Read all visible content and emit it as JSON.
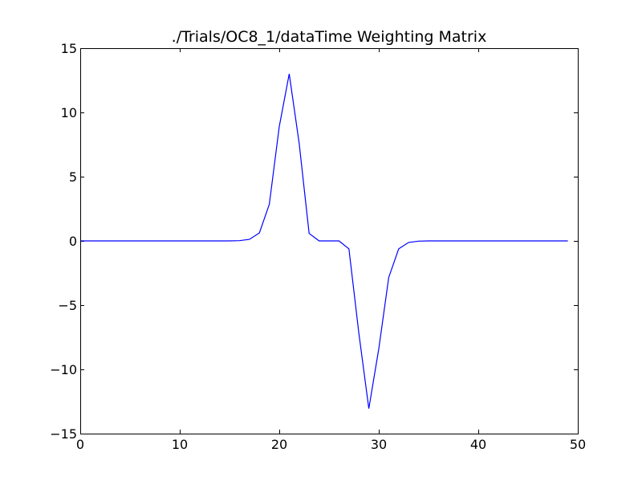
{
  "chart_data": {
    "type": "line",
    "title": "./Trials/OC8_1/dataTime Weighting Matrix",
    "xlabel": "",
    "ylabel": "",
    "xlim": [
      0,
      50
    ],
    "ylim": [
      -15,
      15
    ],
    "grid": false,
    "legend": "none",
    "x_ticks": [
      0,
      10,
      20,
      30,
      40,
      50
    ],
    "x_tick_labels": [
      "0",
      "10",
      "20",
      "30",
      "40",
      "50"
    ],
    "y_ticks": [
      15,
      10,
      5,
      0,
      -5,
      -10,
      -15
    ],
    "y_tick_labels": [
      "15",
      "10",
      "5",
      "0",
      "−5",
      "−10",
      "−15"
    ],
    "series": [
      {
        "color": "#0000ff",
        "x": [
          0,
          1,
          2,
          3,
          4,
          5,
          6,
          7,
          8,
          9,
          10,
          11,
          12,
          13,
          14,
          15,
          16,
          17,
          18,
          19,
          20,
          21,
          22,
          23,
          24,
          25,
          26,
          27,
          28,
          29,
          30,
          31,
          32,
          33,
          34,
          35,
          36,
          37,
          38,
          39,
          40,
          41,
          42,
          43,
          44,
          45,
          46,
          47,
          48,
          49
        ],
        "y": [
          0,
          0,
          0,
          0,
          0,
          0,
          0,
          0,
          0,
          0,
          0,
          0,
          0,
          0,
          0,
          0,
          0.02,
          0.12,
          0.62,
          2.85,
          8.9,
          13.0,
          7.6,
          0.58,
          0.0,
          0.0,
          0.0,
          -0.62,
          -7.2,
          -13.05,
          -8.4,
          -2.85,
          -0.62,
          -0.12,
          -0.02,
          0,
          0,
          0,
          0,
          0,
          0,
          0,
          0,
          0,
          0,
          0,
          0,
          0,
          0,
          0
        ]
      }
    ]
  }
}
